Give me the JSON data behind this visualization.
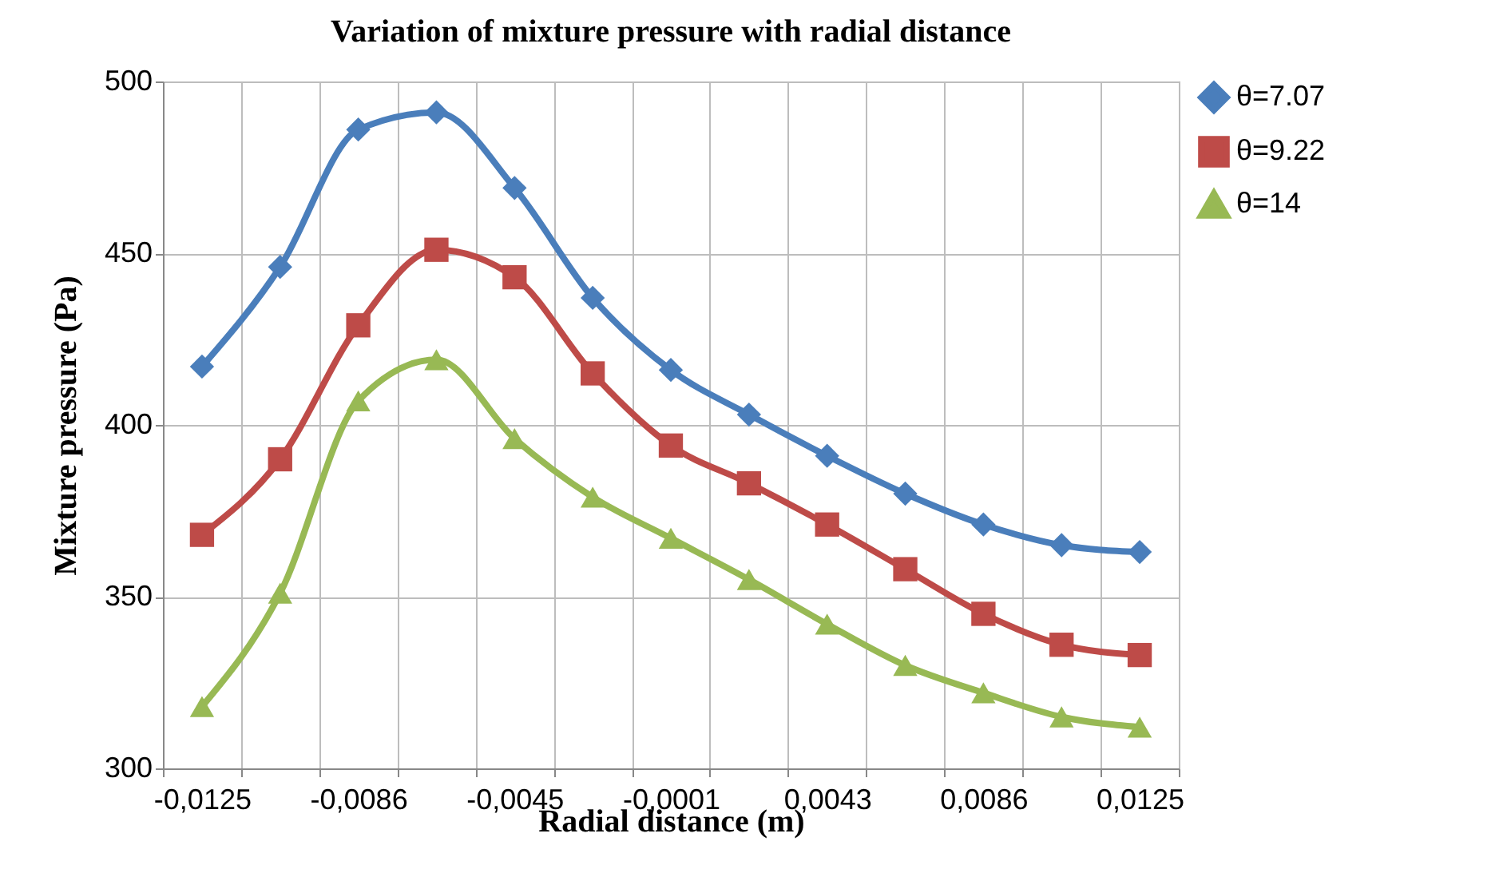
{
  "chart_data": {
    "type": "line",
    "title": "Variation of mixture pressure with radial distance",
    "xlabel": "Radial distance (m)",
    "ylabel": "Mixture  pressure (Pa)",
    "categories": [
      "-0,0125",
      null,
      "-0,0086",
      null,
      "-0,0045",
      null,
      "-0,0001",
      null,
      "0,0043",
      null,
      "0,0086",
      null,
      "0,0125"
    ],
    "series": [
      {
        "name": "θ=7.07",
        "color": "#4a7ebb",
        "marker": "diamond",
        "values": [
          417,
          446,
          486,
          491,
          469,
          437,
          416,
          403,
          391,
          380,
          371,
          365,
          363
        ]
      },
      {
        "name": "θ=9.22",
        "color": "#be4b48",
        "marker": "square",
        "values": [
          368,
          390,
          429,
          451,
          443,
          415,
          394,
          383,
          371,
          358,
          345,
          336,
          333
        ]
      },
      {
        "name": "θ=14",
        "color": "#98b954",
        "marker": "triangle",
        "values": [
          318,
          351,
          407,
          419,
          396,
          379,
          367,
          355,
          342,
          330,
          322,
          315,
          312
        ]
      }
    ],
    "ylim": [
      300,
      500
    ],
    "yticks": [
      300,
      350,
      400,
      450,
      500
    ],
    "grid": true,
    "legend": "right",
    "line_style": "solid"
  }
}
